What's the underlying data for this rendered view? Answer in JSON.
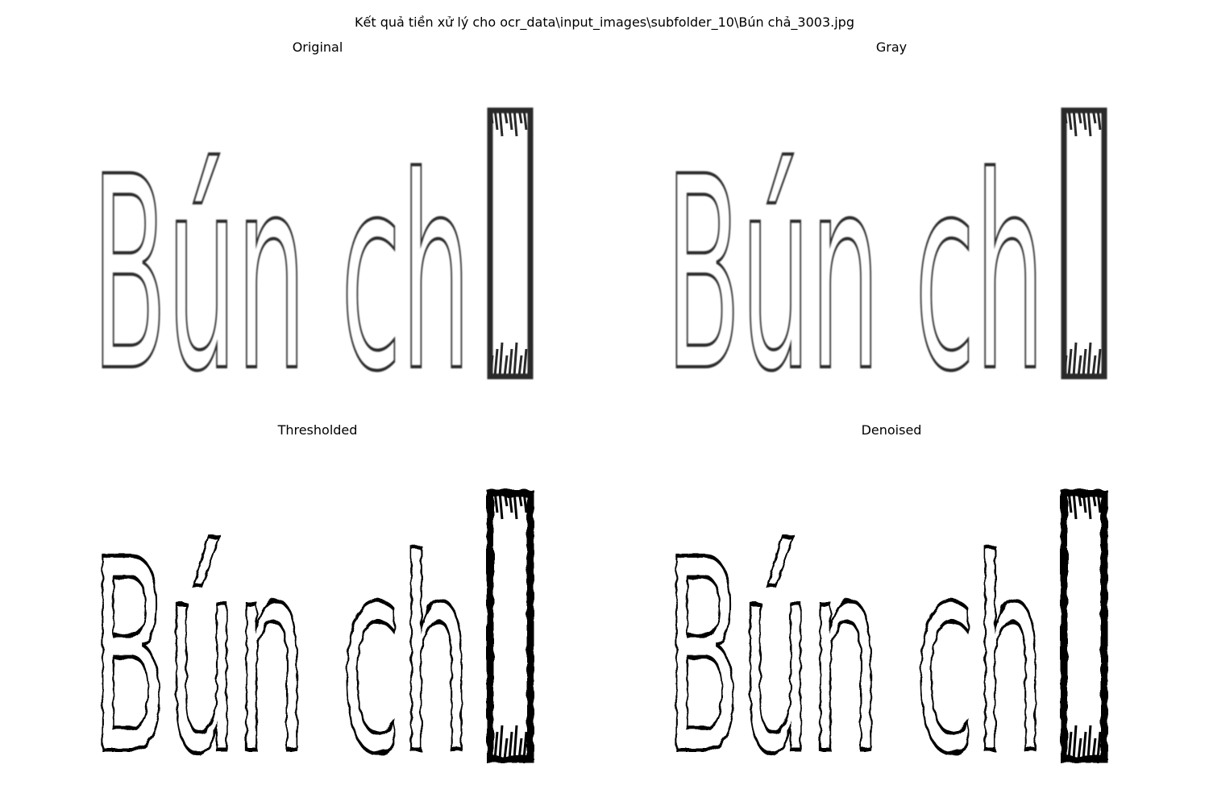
{
  "figure": {
    "suptitle": "Kết quả tiền xử lý cho ocr_data\\input_images\\subfolder_10\\Bún chả_3003.jpg"
  },
  "panels": [
    {
      "title": "Original",
      "text": "Bún ch",
      "style": "soft",
      "ink": "#2a2a2a"
    },
    {
      "title": "Gray",
      "text": "Bún ch",
      "style": "soft",
      "ink": "#2a2a2a"
    },
    {
      "title": "Thresholded",
      "text": "Bún ch",
      "style": "binary",
      "ink": "#000000"
    },
    {
      "title": "Denoised",
      "text": "Bún ch",
      "style": "binary",
      "ink": "#000000"
    }
  ]
}
